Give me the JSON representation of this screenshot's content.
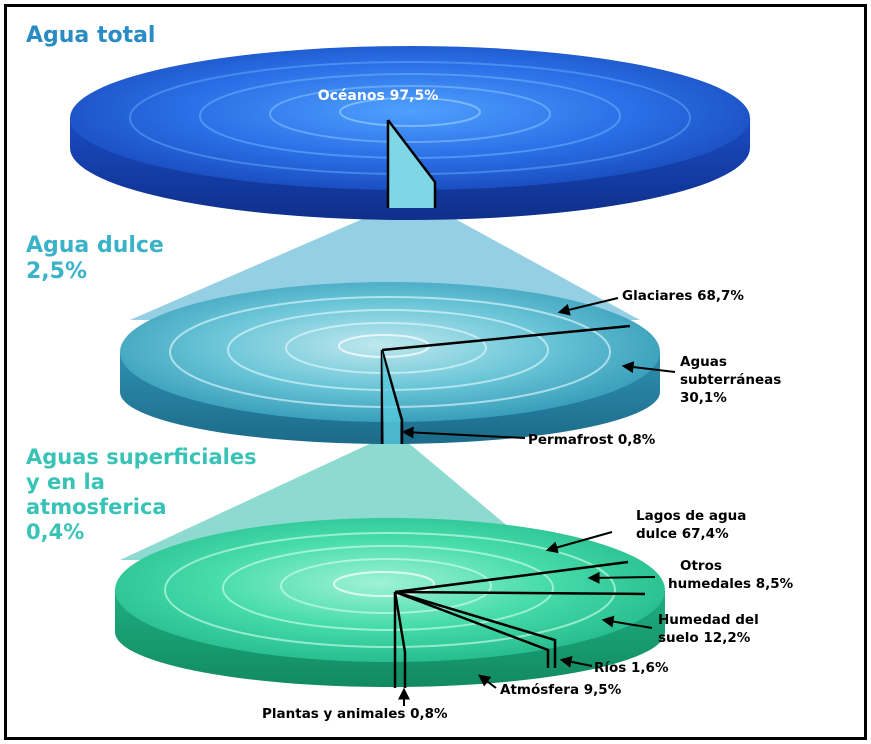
{
  "levels": {
    "total": {
      "title": "Agua total",
      "oceanos": "Océanos 97,5%"
    },
    "dulce": {
      "title_line1": "Agua dulce",
      "title_line2": "2,5%"
    },
    "superficial": {
      "title_line1": "Aguas superficiales",
      "title_line2": "y en la",
      "title_line3": "atmosferica",
      "title_line4": "0,4%"
    }
  },
  "fresh_water_labels": {
    "glaciares": "Glaciares 68,7%",
    "subterraneas_1": "Aguas",
    "subterraneas_2": "subterráneas",
    "subterraneas_3": "30,1%",
    "permafrost": "Permafrost 0,8%"
  },
  "surface_labels": {
    "lagos_1": "Lagos de agua",
    "lagos_2": "dulce 67,4%",
    "humedales_1": "Otros",
    "humedales_2": "humedales 8,5%",
    "suelo_1": "Humedad del",
    "suelo_2": "suelo 12,2%",
    "rios": "Ríos 1,6%",
    "atmosfera": "Atmósfera 9,5%",
    "plantas": "Plantas y animales 0,8%"
  },
  "colors": {
    "ocean_disc": "#1c5fd8",
    "fresh_disc": "#3aa7c2",
    "surface_disc": "#2fcf9a",
    "title_total": "#2a8cc4",
    "title_dulce": "#3ab3c9",
    "title_superficial": "#39c3b6"
  }
}
